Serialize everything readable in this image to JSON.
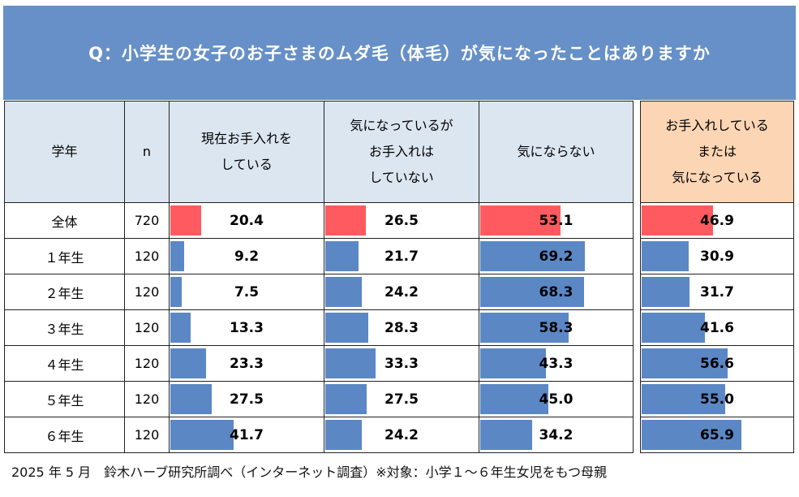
{
  "title": "Q：小学生の女子のお子さまのムダ毛（体毛）が気になったことはありますか",
  "footer": "2025 年 5 月　鈴木ハーブ研究所調べ（インターネット調査）※対象：小学１～６年生女児をもつ母親",
  "colors": {
    "title_bg": "#6690c7",
    "header_bg": "#dce6f1",
    "highlight_header_bg": "#fcd5b4",
    "total_bar": "#ff5a5f",
    "grade_bar": "#5b87c5"
  },
  "chart_data": {
    "type": "table",
    "bar_scale": [
      0,
      100
    ],
    "headers": [
      "学年",
      "n",
      "現在お手入れを\nしている",
      "気になっているが\nお手入れは\nしていない",
      "気にならない",
      "お手入れしている\nまたは\n気になっている"
    ],
    "rows": [
      {
        "grade": "全体",
        "n": "720",
        "values": [
          20.4,
          26.5,
          53.1,
          46.9
        ]
      },
      {
        "grade": "１年生",
        "n": "120",
        "values": [
          9.2,
          21.7,
          69.2,
          30.9
        ]
      },
      {
        "grade": "２年生",
        "n": "120",
        "values": [
          7.5,
          24.2,
          68.3,
          31.7
        ]
      },
      {
        "grade": "３年生",
        "n": "120",
        "values": [
          13.3,
          28.3,
          58.3,
          41.6
        ]
      },
      {
        "grade": "４年生",
        "n": "120",
        "values": [
          23.3,
          33.3,
          43.3,
          56.6
        ]
      },
      {
        "grade": "５年生",
        "n": "120",
        "values": [
          27.5,
          27.5,
          45.0,
          55.0
        ]
      },
      {
        "grade": "６年生",
        "n": "120",
        "values": [
          41.7,
          24.2,
          34.2,
          65.9
        ]
      }
    ]
  }
}
